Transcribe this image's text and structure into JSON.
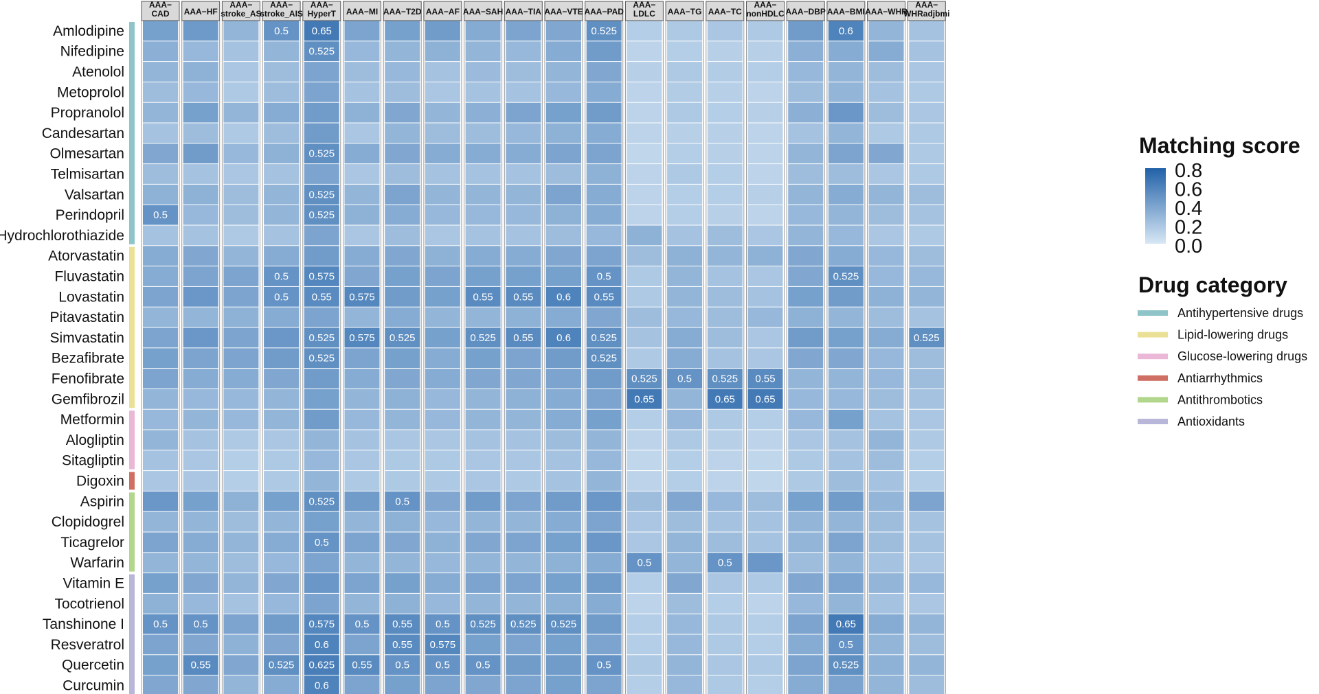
{
  "chart_data": {
    "type": "heatmap",
    "columns": [
      [
        "AAA−",
        "CAD"
      ],
      [
        "AAA−HF"
      ],
      [
        "AAA−",
        "stroke_AS"
      ],
      [
        "AAA−",
        "stroke_AIS"
      ],
      [
        "AAA−",
        "HyperT"
      ],
      [
        "AAA−MI"
      ],
      [
        "AAA−T2D"
      ],
      [
        "AAA−AF"
      ],
      [
        "AAA−SAH"
      ],
      [
        "AAA−TIA"
      ],
      [
        "AAA−VTE"
      ],
      [
        "AAA−PAD"
      ],
      [
        "AAA−",
        "LDLC"
      ],
      [
        "AAA−TG"
      ],
      [
        "AAA−TC"
      ],
      [
        "AAA−",
        "nonHDLC"
      ],
      [
        "AAA−DBP"
      ],
      [
        "AAA−BMI"
      ],
      [
        "AAA−WHR"
      ],
      [
        "AAA−",
        "WHRadjbmi"
      ]
    ],
    "rows": [
      "Amlodipine",
      "Nifedipine",
      "Atenolol",
      "Metoprolol",
      "Propranolol",
      "Candesartan",
      "Olmesartan",
      "Telmisartan",
      "Valsartan",
      "Perindopril",
      "Hydrochlorothiazide",
      "Atorvastatin",
      "Fluvastatin",
      "Lovastatin",
      "Pitavastatin",
      "Simvastatin",
      "Bezafibrate",
      "Fenofibrate",
      "Gemfibrozil",
      "Metformin",
      "Alogliptin",
      "Sitagliptin",
      "Digoxin",
      "Aspirin",
      "Clopidogrel",
      "Ticagrelor",
      "Warfarin",
      "Vitamin E",
      "Tocotrienol",
      "Tanshinone I",
      "Resveratrol",
      "Quercetin",
      "Curcumin"
    ],
    "row_categories": [
      0,
      0,
      0,
      0,
      0,
      0,
      0,
      0,
      0,
      0,
      0,
      1,
      1,
      1,
      1,
      1,
      1,
      1,
      1,
      2,
      2,
      2,
      3,
      4,
      4,
      4,
      4,
      5,
      5,
      5,
      5,
      5,
      5
    ],
    "values": [
      [
        0.42,
        0.46,
        0.3,
        0.5,
        0.65,
        0.4,
        0.42,
        0.45,
        0.36,
        0.4,
        0.38,
        0.525,
        0.15,
        0.18,
        0.2,
        0.18,
        0.45,
        0.6,
        0.3,
        0.22
      ],
      [
        0.33,
        0.28,
        0.22,
        0.3,
        0.525,
        0.28,
        0.3,
        0.32,
        0.3,
        0.28,
        0.35,
        0.45,
        0.12,
        0.15,
        0.14,
        0.14,
        0.33,
        0.35,
        0.35,
        0.22
      ],
      [
        0.3,
        0.32,
        0.2,
        0.25,
        0.4,
        0.25,
        0.28,
        0.22,
        0.26,
        0.25,
        0.3,
        0.38,
        0.14,
        0.18,
        0.16,
        0.15,
        0.28,
        0.3,
        0.25,
        0.2
      ],
      [
        0.25,
        0.28,
        0.18,
        0.25,
        0.4,
        0.22,
        0.25,
        0.2,
        0.22,
        0.22,
        0.28,
        0.35,
        0.12,
        0.16,
        0.14,
        0.12,
        0.25,
        0.3,
        0.22,
        0.18
      ],
      [
        0.3,
        0.42,
        0.3,
        0.35,
        0.45,
        0.32,
        0.38,
        0.3,
        0.33,
        0.4,
        0.42,
        0.45,
        0.12,
        0.18,
        0.15,
        0.14,
        0.33,
        0.48,
        0.25,
        0.2
      ],
      [
        0.22,
        0.25,
        0.18,
        0.25,
        0.45,
        0.2,
        0.3,
        0.25,
        0.25,
        0.28,
        0.32,
        0.35,
        0.12,
        0.14,
        0.14,
        0.12,
        0.22,
        0.3,
        0.18,
        0.18
      ],
      [
        0.38,
        0.45,
        0.28,
        0.32,
        0.525,
        0.35,
        0.38,
        0.35,
        0.35,
        0.35,
        0.4,
        0.4,
        0.1,
        0.15,
        0.14,
        0.12,
        0.3,
        0.4,
        0.38,
        0.18
      ],
      [
        0.25,
        0.22,
        0.2,
        0.22,
        0.4,
        0.2,
        0.25,
        0.22,
        0.22,
        0.22,
        0.25,
        0.32,
        0.12,
        0.18,
        0.15,
        0.12,
        0.25,
        0.25,
        0.2,
        0.18
      ],
      [
        0.32,
        0.32,
        0.25,
        0.3,
        0.525,
        0.3,
        0.4,
        0.3,
        0.3,
        0.3,
        0.4,
        0.35,
        0.12,
        0.15,
        0.15,
        0.14,
        0.3,
        0.35,
        0.3,
        0.25
      ],
      [
        0.5,
        0.28,
        0.25,
        0.3,
        0.525,
        0.32,
        0.35,
        0.28,
        0.28,
        0.28,
        0.32,
        0.35,
        0.12,
        0.15,
        0.14,
        0.12,
        0.28,
        0.3,
        0.25,
        0.22
      ],
      [
        0.22,
        0.22,
        0.18,
        0.22,
        0.4,
        0.2,
        0.25,
        0.2,
        0.22,
        0.22,
        0.25,
        0.28,
        0.32,
        0.22,
        0.25,
        0.2,
        0.3,
        0.28,
        0.2,
        0.18
      ],
      [
        0.35,
        0.38,
        0.3,
        0.35,
        0.45,
        0.35,
        0.38,
        0.32,
        0.35,
        0.35,
        0.38,
        0.4,
        0.25,
        0.32,
        0.3,
        0.32,
        0.38,
        0.35,
        0.28,
        0.25
      ],
      [
        0.35,
        0.4,
        0.4,
        0.5,
        0.575,
        0.38,
        0.42,
        0.4,
        0.42,
        0.42,
        0.42,
        0.5,
        0.18,
        0.3,
        0.22,
        0.2,
        0.38,
        0.525,
        0.28,
        0.28
      ],
      [
        0.4,
        0.48,
        0.4,
        0.5,
        0.55,
        0.575,
        0.45,
        0.42,
        0.55,
        0.55,
        0.6,
        0.55,
        0.18,
        0.3,
        0.25,
        0.22,
        0.42,
        0.45,
        0.32,
        0.3
      ],
      [
        0.3,
        0.3,
        0.32,
        0.35,
        0.4,
        0.3,
        0.35,
        0.3,
        0.3,
        0.32,
        0.35,
        0.38,
        0.25,
        0.28,
        0.25,
        0.28,
        0.32,
        0.3,
        0.25,
        0.22
      ],
      [
        0.4,
        0.48,
        0.4,
        0.48,
        0.525,
        0.575,
        0.525,
        0.42,
        0.525,
        0.55,
        0.6,
        0.525,
        0.22,
        0.35,
        0.25,
        0.2,
        0.45,
        0.42,
        0.35,
        0.525
      ],
      [
        0.42,
        0.4,
        0.4,
        0.45,
        0.525,
        0.4,
        0.42,
        0.35,
        0.42,
        0.4,
        0.45,
        0.525,
        0.18,
        0.35,
        0.22,
        0.2,
        0.38,
        0.38,
        0.28,
        0.25
      ],
      [
        0.4,
        0.35,
        0.35,
        0.38,
        0.45,
        0.35,
        0.38,
        0.35,
        0.38,
        0.38,
        0.4,
        0.45,
        0.525,
        0.5,
        0.525,
        0.55,
        0.3,
        0.3,
        0.28,
        0.25
      ],
      [
        0.3,
        0.28,
        0.28,
        0.3,
        0.42,
        0.3,
        0.32,
        0.28,
        0.3,
        0.32,
        0.35,
        0.4,
        0.65,
        0.3,
        0.65,
        0.65,
        0.28,
        0.28,
        0.25,
        0.22
      ],
      [
        0.28,
        0.3,
        0.28,
        0.3,
        0.45,
        0.28,
        0.3,
        0.28,
        0.3,
        0.3,
        0.35,
        0.42,
        0.15,
        0.28,
        0.18,
        0.15,
        0.28,
        0.42,
        0.22,
        0.2
      ],
      [
        0.3,
        0.22,
        0.18,
        0.2,
        0.3,
        0.22,
        0.2,
        0.2,
        0.22,
        0.22,
        0.25,
        0.3,
        0.12,
        0.18,
        0.14,
        0.12,
        0.2,
        0.22,
        0.3,
        0.18
      ],
      [
        0.22,
        0.2,
        0.15,
        0.18,
        0.28,
        0.2,
        0.18,
        0.18,
        0.2,
        0.2,
        0.22,
        0.28,
        0.1,
        0.15,
        0.12,
        0.1,
        0.18,
        0.22,
        0.25,
        0.15
      ],
      [
        0.2,
        0.2,
        0.15,
        0.18,
        0.3,
        0.18,
        0.18,
        0.18,
        0.2,
        0.18,
        0.22,
        0.3,
        0.12,
        0.15,
        0.12,
        0.1,
        0.18,
        0.25,
        0.22,
        0.15
      ],
      [
        0.48,
        0.42,
        0.32,
        0.42,
        0.525,
        0.45,
        0.5,
        0.38,
        0.45,
        0.4,
        0.45,
        0.48,
        0.25,
        0.38,
        0.28,
        0.25,
        0.42,
        0.45,
        0.3,
        0.4
      ],
      [
        0.3,
        0.3,
        0.25,
        0.3,
        0.42,
        0.3,
        0.32,
        0.28,
        0.3,
        0.3,
        0.35,
        0.4,
        0.2,
        0.25,
        0.22,
        0.22,
        0.3,
        0.3,
        0.25,
        0.22
      ],
      [
        0.4,
        0.35,
        0.3,
        0.35,
        0.5,
        0.4,
        0.38,
        0.32,
        0.38,
        0.4,
        0.42,
        0.48,
        0.2,
        0.3,
        0.25,
        0.22,
        0.3,
        0.4,
        0.25,
        0.22
      ],
      [
        0.3,
        0.3,
        0.25,
        0.28,
        0.4,
        0.3,
        0.3,
        0.28,
        0.3,
        0.3,
        0.32,
        0.35,
        0.5,
        0.3,
        0.5,
        0.48,
        0.25,
        0.3,
        0.22,
        0.2
      ],
      [
        0.42,
        0.38,
        0.3,
        0.38,
        0.48,
        0.4,
        0.42,
        0.35,
        0.4,
        0.4,
        0.42,
        0.45,
        0.15,
        0.38,
        0.2,
        0.18,
        0.38,
        0.4,
        0.3,
        0.28
      ],
      [
        0.32,
        0.28,
        0.22,
        0.28,
        0.4,
        0.3,
        0.32,
        0.28,
        0.3,
        0.3,
        0.32,
        0.35,
        0.12,
        0.25,
        0.15,
        0.12,
        0.28,
        0.3,
        0.22,
        0.2
      ],
      [
        0.5,
        0.5,
        0.4,
        0.45,
        0.575,
        0.5,
        0.55,
        0.5,
        0.525,
        0.525,
        0.525,
        0.45,
        0.15,
        0.28,
        0.18,
        0.15,
        0.4,
        0.65,
        0.35,
        0.3
      ],
      [
        0.4,
        0.38,
        0.32,
        0.38,
        0.6,
        0.4,
        0.55,
        0.575,
        0.42,
        0.4,
        0.42,
        0.4,
        0.15,
        0.28,
        0.18,
        0.15,
        0.35,
        0.5,
        0.3,
        0.25
      ],
      [
        0.42,
        0.55,
        0.38,
        0.525,
        0.625,
        0.55,
        0.5,
        0.5,
        0.5,
        0.45,
        0.45,
        0.5,
        0.18,
        0.3,
        0.2,
        0.18,
        0.4,
        0.525,
        0.32,
        0.3
      ],
      [
        0.38,
        0.38,
        0.3,
        0.35,
        0.6,
        0.4,
        0.42,
        0.4,
        0.38,
        0.4,
        0.42,
        0.4,
        0.15,
        0.28,
        0.18,
        0.15,
        0.35,
        0.4,
        0.3,
        0.25
      ]
    ],
    "annotated_cells": [
      [
        0,
        3,
        "0.5"
      ],
      [
        0,
        4,
        "0.65"
      ],
      [
        0,
        11,
        "0.525"
      ],
      [
        0,
        17,
        "0.6"
      ],
      [
        1,
        4,
        "0.525"
      ],
      [
        6,
        4,
        "0.525"
      ],
      [
        8,
        4,
        "0.525"
      ],
      [
        9,
        0,
        "0.5"
      ],
      [
        9,
        4,
        "0.525"
      ],
      [
        12,
        3,
        "0.5"
      ],
      [
        12,
        4,
        "0.575"
      ],
      [
        12,
        11,
        "0.5"
      ],
      [
        12,
        17,
        "0.525"
      ],
      [
        13,
        3,
        "0.5"
      ],
      [
        13,
        4,
        "0.55"
      ],
      [
        13,
        5,
        "0.575"
      ],
      [
        13,
        8,
        "0.55"
      ],
      [
        13,
        9,
        "0.55"
      ],
      [
        13,
        10,
        "0.6"
      ],
      [
        13,
        11,
        "0.55"
      ],
      [
        15,
        4,
        "0.525"
      ],
      [
        15,
        5,
        "0.575"
      ],
      [
        15,
        6,
        "0.525"
      ],
      [
        15,
        8,
        "0.525"
      ],
      [
        15,
        9,
        "0.55"
      ],
      [
        15,
        10,
        "0.6"
      ],
      [
        15,
        11,
        "0.525"
      ],
      [
        15,
        19,
        "0.525"
      ],
      [
        16,
        4,
        "0.525"
      ],
      [
        16,
        11,
        "0.525"
      ],
      [
        17,
        12,
        "0.525"
      ],
      [
        17,
        13,
        "0.5"
      ],
      [
        17,
        14,
        "0.525"
      ],
      [
        17,
        15,
        "0.55"
      ],
      [
        18,
        12,
        "0.65"
      ],
      [
        18,
        14,
        "0.65"
      ],
      [
        18,
        15,
        "0.65"
      ],
      [
        23,
        4,
        "0.525"
      ],
      [
        23,
        6,
        "0.5"
      ],
      [
        25,
        4,
        "0.5"
      ],
      [
        26,
        12,
        "0.5"
      ],
      [
        26,
        14,
        "0.5"
      ],
      [
        29,
        0,
        "0.5"
      ],
      [
        29,
        1,
        "0.5"
      ],
      [
        29,
        4,
        "0.575"
      ],
      [
        29,
        5,
        "0.5"
      ],
      [
        29,
        6,
        "0.55"
      ],
      [
        29,
        7,
        "0.5"
      ],
      [
        29,
        8,
        "0.525"
      ],
      [
        29,
        9,
        "0.525"
      ],
      [
        29,
        10,
        "0.525"
      ],
      [
        29,
        17,
        "0.65"
      ],
      [
        30,
        4,
        "0.6"
      ],
      [
        30,
        6,
        "0.55"
      ],
      [
        30,
        7,
        "0.575"
      ],
      [
        30,
        17,
        "0.5"
      ],
      [
        31,
        1,
        "0.55"
      ],
      [
        31,
        3,
        "0.525"
      ],
      [
        31,
        4,
        "0.625"
      ],
      [
        31,
        5,
        "0.55"
      ],
      [
        31,
        6,
        "0.5"
      ],
      [
        31,
        7,
        "0.5"
      ],
      [
        31,
        8,
        "0.5"
      ],
      [
        31,
        11,
        "0.5"
      ],
      [
        31,
        17,
        "0.525"
      ],
      [
        32,
        4,
        "0.6"
      ]
    ],
    "colorscale": {
      "min": 0.0,
      "max": 0.8,
      "low": "#d7e7f5",
      "high": "#2161a8"
    },
    "legend": {
      "score_title": "Matching score",
      "score_ticks": [
        "0.8",
        "0.6",
        "0.4",
        "0.2",
        "0.0"
      ],
      "category_title": "Drug category",
      "categories": [
        {
          "name": "Antihypertensive drugs",
          "color": "#8fc4c8"
        },
        {
          "name": "Lipid-lowering drugs",
          "color": "#ebe196"
        },
        {
          "name": "Glucose-lowering drugs",
          "color": "#eab8d6"
        },
        {
          "name": "Antiarrhythmics",
          "color": "#cf6f64"
        },
        {
          "name": "Antithrombotics",
          "color": "#b2d68c"
        },
        {
          "name": "Antioxidants",
          "color": "#b8b6d9"
        }
      ],
      "placement": "right"
    }
  }
}
